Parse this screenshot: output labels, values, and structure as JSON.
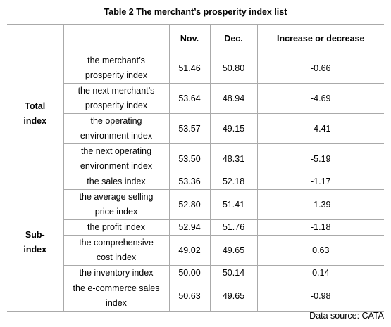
{
  "title": "Table 2 The merchant’s prosperity index list",
  "table": {
    "columns": [
      "Nov.",
      "Dec.",
      "Increase or decrease"
    ],
    "groups": [
      {
        "label": "Total index",
        "rows": [
          {
            "name": "the merchant’s prosperity index",
            "values": [
              "51.46",
              "50.80",
              "-0.66"
            ]
          },
          {
            "name": "the next merchant’s prosperity index",
            "values": [
              "53.64",
              "48.94",
              "-4.69"
            ]
          },
          {
            "name": "the operating environment index",
            "values": [
              "53.57",
              "49.15",
              "-4.41"
            ]
          },
          {
            "name": "the next operating environment index",
            "values": [
              "53.50",
              "48.31",
              "-5.19"
            ]
          }
        ]
      },
      {
        "label": "Sub-index",
        "rows": [
          {
            "name": "the sales index",
            "values": [
              "53.36",
              "52.18",
              "-1.17"
            ]
          },
          {
            "name": "the average selling price index",
            "values": [
              "52.80",
              "51.41",
              "-1.39"
            ]
          },
          {
            "name": "the profit index",
            "values": [
              "52.94",
              "51.76",
              "-1.18"
            ]
          },
          {
            "name": "the comprehensive cost index",
            "values": [
              "49.02",
              "49.65",
              "0.63"
            ]
          },
          {
            "name": "the inventory index",
            "values": [
              "50.00",
              "50.14",
              "0.14"
            ]
          },
          {
            "name": "the e-commerce sales index",
            "values": [
              "50.63",
              "49.65",
              "-0.98"
            ]
          }
        ]
      }
    ]
  },
  "source": "Data source: CATA"
}
